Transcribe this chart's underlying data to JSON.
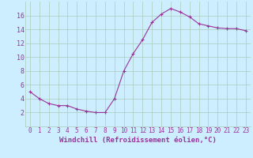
{
  "xlabel": "Windchill (Refroidissement éolien,°C)",
  "x_values": [
    0,
    1,
    2,
    3,
    4,
    5,
    6,
    7,
    8,
    9,
    10,
    11,
    12,
    13,
    14,
    15,
    16,
    17,
    18,
    19,
    20,
    21,
    22,
    23
  ],
  "y_values": [
    5.0,
    4.0,
    3.3,
    3.0,
    3.0,
    2.5,
    2.2,
    2.0,
    2.0,
    4.0,
    8.0,
    10.5,
    12.5,
    15.0,
    16.2,
    17.0,
    16.5,
    15.8,
    14.8,
    14.5,
    14.2,
    14.1,
    14.1,
    13.8
  ],
  "line_color": "#993399",
  "marker_color": "#993399",
  "bg_color": "#cceeff",
  "grid_color": "#aaccbb",
  "axis_label_color": "#993399",
  "tick_label_color": "#993399",
  "ylim": [
    0,
    18
  ],
  "yticks": [
    2,
    4,
    6,
    8,
    10,
    12,
    14,
    16
  ],
  "xlim": [
    -0.5,
    23.5
  ],
  "xlabel_fontsize": 6.5,
  "tick_fontsize": 5.5
}
